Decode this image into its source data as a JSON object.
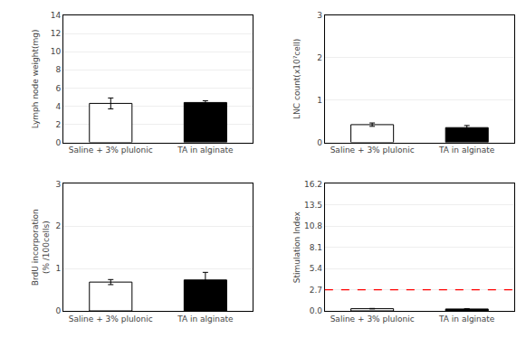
{
  "chart_data": [
    {
      "type": "bar",
      "ylabel": "Lymph node weight(mg)",
      "categories": [
        "Saline + 3% plulonic",
        "TA in alginate"
      ],
      "values": [
        4.3,
        4.4
      ],
      "errors": [
        0.6,
        0.2
      ],
      "colors": [
        "white",
        "black"
      ],
      "ylim": [
        0,
        14
      ],
      "yticks": [
        0,
        2,
        4,
        6,
        8,
        10,
        12,
        14
      ]
    },
    {
      "type": "bar",
      "ylabel": "LNC count(x10⁷cell)",
      "categories": [
        "Saline + 3% plulonic",
        "TA in alginate"
      ],
      "values": [
        0.42,
        0.35
      ],
      "errors": [
        0.04,
        0.05
      ],
      "colors": [
        "white",
        "black"
      ],
      "ylim": [
        0,
        3
      ],
      "yticks": [
        0,
        1,
        2,
        3
      ]
    },
    {
      "type": "bar",
      "ylabel": "BrdU incorporation\n(% /100cells)",
      "categories": [
        "Saline + 3% plulonic",
        "TA in alginate"
      ],
      "values": [
        0.68,
        0.73
      ],
      "errors": [
        0.06,
        0.18
      ],
      "colors": [
        "white",
        "black"
      ],
      "ylim": [
        0,
        3
      ],
      "yticks": [
        0,
        1,
        2,
        3
      ]
    },
    {
      "type": "bar",
      "ylabel": "Stimulation Index",
      "categories": [
        "Saline + 3% plulonic",
        "TA in alginate"
      ],
      "values": [
        0.28,
        0.24
      ],
      "errors": [
        0.03,
        0.04
      ],
      "colors": [
        "white",
        "black"
      ],
      "ylim": [
        0,
        16.2
      ],
      "yticks": [
        {
          "value": 0,
          "label": "0.0"
        },
        2.7,
        5.4,
        8.1,
        10.8,
        13.5,
        16.2
      ],
      "hline": {
        "y": 2.7,
        "color": "red",
        "line_style": "dashed"
      }
    }
  ]
}
